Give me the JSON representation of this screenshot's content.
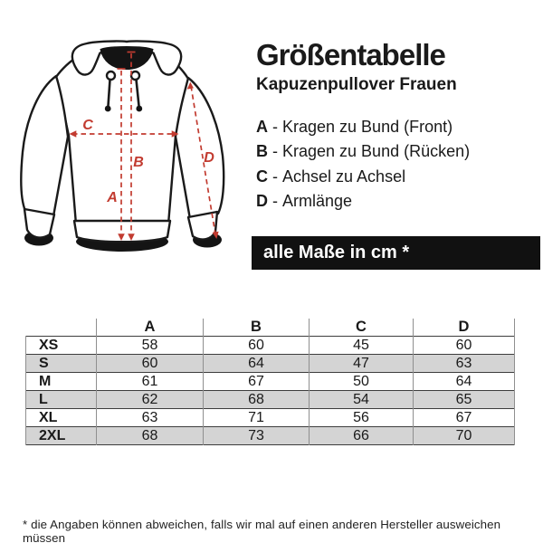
{
  "header": {
    "title": "Größentabelle",
    "subtitle": "Kapuzenpullover Frauen"
  },
  "legend": {
    "separator": "-",
    "items": [
      {
        "key": "A",
        "label": "Kragen zu Bund (Front)"
      },
      {
        "key": "B",
        "label": "Kragen zu Bund (Rücken)"
      },
      {
        "key": "C",
        "label": "Achsel zu Achsel"
      },
      {
        "key": "D",
        "label": "Armlänge"
      }
    ]
  },
  "banner": {
    "text": "alle Maße in cm *",
    "bg": "#111111",
    "fg": "#ffffff"
  },
  "diagram": {
    "type": "hoodie-measurement-diagram",
    "accent": "#c23b30",
    "outline": "#1a1a1a",
    "labels": {
      "a": "A",
      "b": "B",
      "c": "C",
      "d": "D"
    }
  },
  "size_table": {
    "columns": [
      "A",
      "B",
      "C",
      "D"
    ],
    "stripe_color": "#d4d4d4",
    "rows": [
      {
        "size": "XS",
        "values": [
          58,
          60,
          45,
          60
        ]
      },
      {
        "size": "S",
        "values": [
          60,
          64,
          47,
          63
        ]
      },
      {
        "size": "M",
        "values": [
          61,
          67,
          50,
          64
        ]
      },
      {
        "size": "L",
        "values": [
          62,
          68,
          54,
          65
        ]
      },
      {
        "size": "XL",
        "values": [
          63,
          71,
          56,
          67
        ]
      },
      {
        "size": "2XL",
        "values": [
          68,
          73,
          66,
          70
        ]
      }
    ]
  },
  "footnote": "* die Angaben können abweichen, falls wir mal auf einen anderen Hersteller ausweichen müssen"
}
